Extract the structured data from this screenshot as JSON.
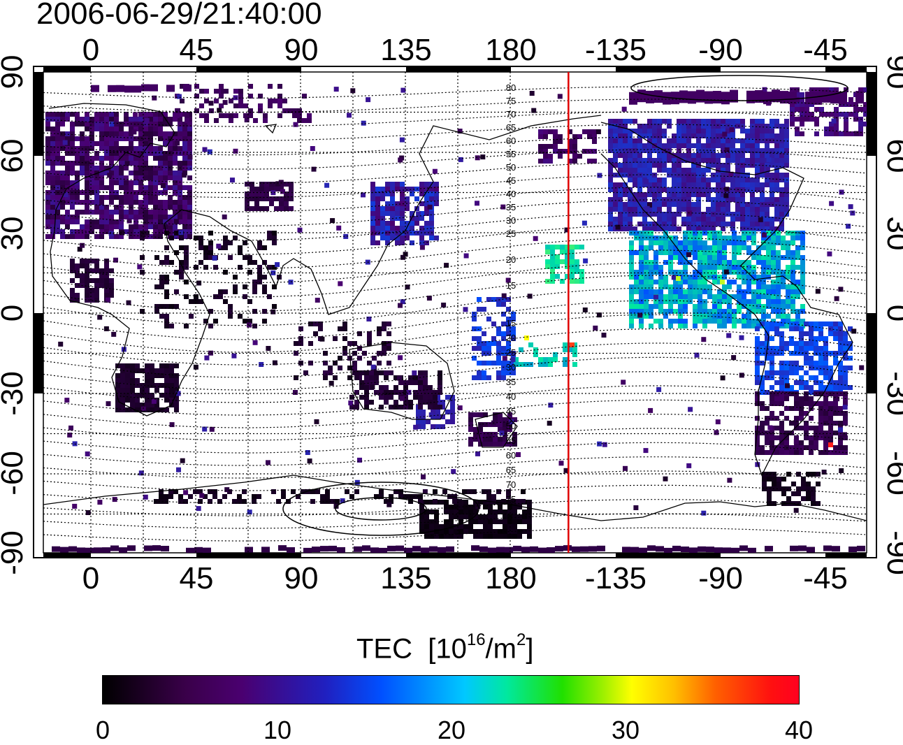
{
  "title": "2006-06-29/21:40:00",
  "lon_ticks": [
    "0",
    "45",
    "90",
    "135",
    "180",
    "-135",
    "-90",
    "-45"
  ],
  "lat_ticks": [
    "90",
    "60",
    "30",
    "0",
    "-30",
    "-60",
    "-90"
  ],
  "contour_labels_north": [
    "80",
    "75",
    "70",
    "65",
    "60",
    "55",
    "50",
    "45",
    "40",
    "35",
    "30",
    "25",
    "20",
    "15"
  ],
  "contour_labels_south": [
    "15",
    "20",
    "25",
    "30",
    "35",
    "40",
    "45",
    "50",
    "55",
    "60",
    "65",
    "70",
    "75"
  ],
  "colorbar": {
    "label": "TEC",
    "unit_base": "[10",
    "unit_exp": "16",
    "unit_mid": "/m",
    "unit_exp2": "2",
    "unit_end": "]",
    "ticks": [
      "0",
      "10",
      "20",
      "30",
      "40"
    ],
    "min": 0,
    "max": 40,
    "colors": [
      "#000000",
      "#4a0070",
      "#0050ff",
      "#00e8a0",
      "#ffff00",
      "#ff0020"
    ]
  },
  "terminator_color": "#e00000",
  "terminator_lon": -155
}
